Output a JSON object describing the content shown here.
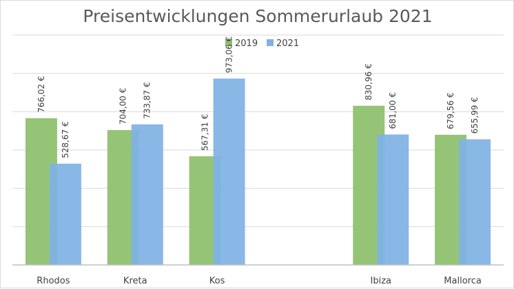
{
  "chart_data": {
    "type": "bar",
    "title": "Preisentwicklungen Sommerurlaub 2021",
    "categories": [
      "Rhodos",
      "Kreta",
      "Kos",
      "",
      "Ibiza",
      "Mallorca"
    ],
    "series": [
      {
        "name": "2019",
        "color": "#8cbf6a",
        "values": [
          766.02,
          704.0,
          567.31,
          null,
          830.96,
          679.56
        ],
        "labels": [
          "766,02 €",
          "704,00 €",
          "567,31 €",
          "",
          "830,96 €",
          "679,56 €"
        ]
      },
      {
        "name": "2021",
        "color": "#7fb2e5",
        "values": [
          528.67,
          733.87,
          973.06,
          null,
          681.0,
          655.99
        ],
        "labels": [
          "528,67 €",
          "733,87 €",
          "973,06 €",
          "",
          "681,00 €",
          "655,99 €"
        ]
      }
    ],
    "ylim": [
      0,
      1200
    ],
    "grid": true,
    "legend_position": "top-center",
    "y_tick_labels_shown": false
  }
}
